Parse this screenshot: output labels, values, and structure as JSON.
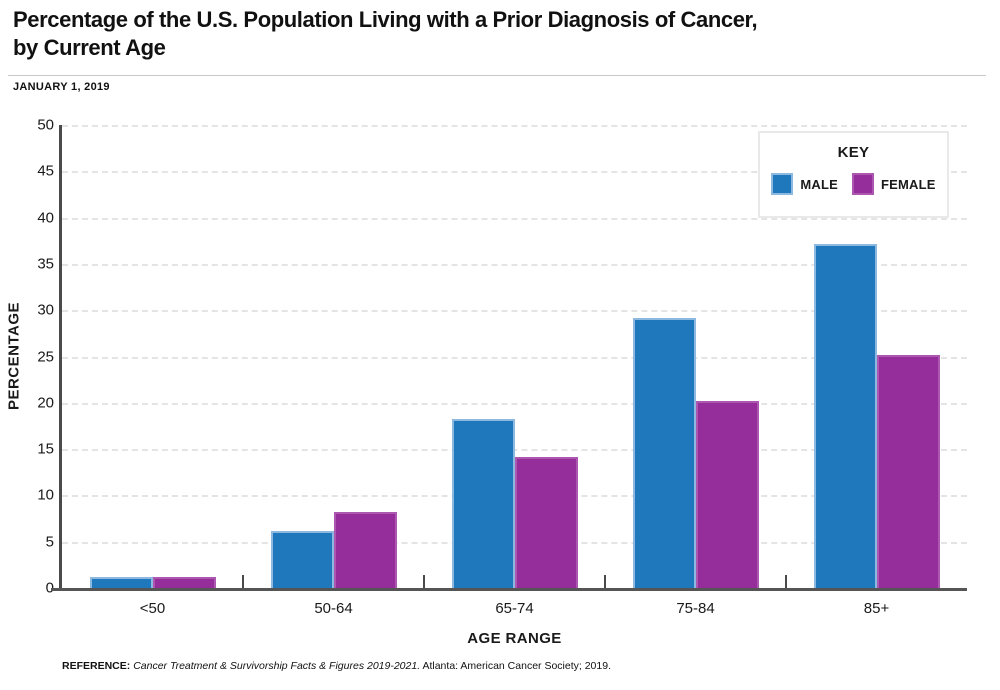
{
  "header": {
    "title_line1": "Percentage of the U.S. Population Living with a Prior Diagnosis of Cancer,",
    "title_line2": "by Current Age",
    "subtitle": "JANUARY 1, 2019"
  },
  "legend": {
    "title": "KEY",
    "items": [
      {
        "label": "MALE",
        "color": "#1f78bc",
        "swatch_class": "male"
      },
      {
        "label": "FEMALE",
        "color": "#952d9b",
        "swatch_class": "female"
      }
    ]
  },
  "chart_data": {
    "type": "bar",
    "title": "Percentage of the U.S. Population Living with a Prior Diagnosis of Cancer, by Current Age",
    "subtitle": "JANUARY 1, 2019",
    "categories": [
      "<50",
      "50-64",
      "65-74",
      "75-84",
      "85+"
    ],
    "series": [
      {
        "name": "MALE",
        "color": "#1f78bc",
        "values": [
          1.2,
          6.2,
          18.2,
          29.2,
          37.2
        ]
      },
      {
        "name": "FEMALE",
        "color": "#952d9b",
        "values": [
          1.2,
          8.2,
          14.2,
          20.2,
          25.2
        ]
      }
    ],
    "xlabel": "AGE RANGE",
    "ylabel": "PERCENTAGE",
    "ylim": [
      0,
      50
    ],
    "ytick_step": 5,
    "grid": "horizontal-dashed",
    "legend_position": "top-right"
  },
  "footer": {
    "reference_label": "REFERENCE:",
    "reference_italic": "Cancer Treatment & Survivorship Facts & Figures 2019-2021.",
    "reference_rest": "Atlanta: American Cancer Society; 2019."
  }
}
